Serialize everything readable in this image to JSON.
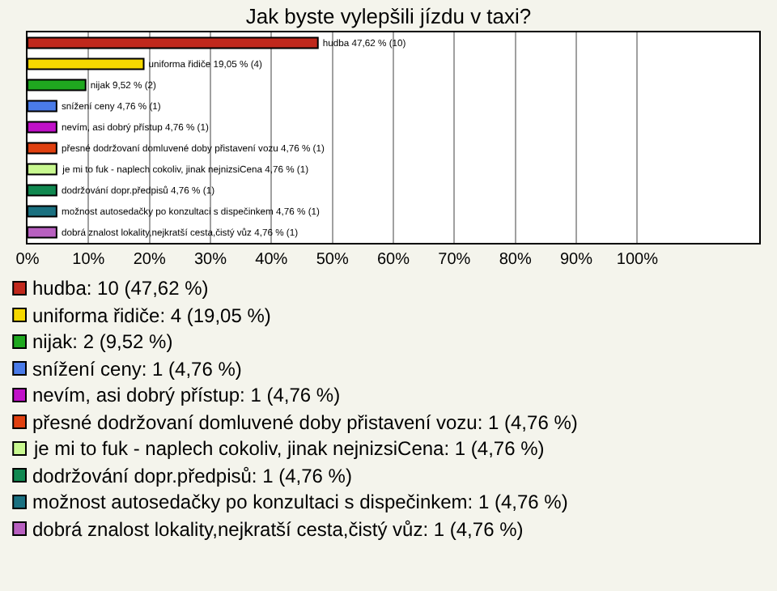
{
  "chart_data": {
    "type": "bar",
    "orientation": "horizontal",
    "title": "Jak byste vylepšili jízdu v taxi?",
    "categories": [
      null,
      null,
      null,
      null,
      null,
      null,
      null,
      null,
      null,
      null
    ],
    "series": [
      {
        "name": "hudba: 10 (47,62 %)",
        "color": "#c0281c",
        "values": [
          47.62,
          null,
          null,
          null,
          null,
          null,
          null,
          null,
          null,
          null
        ],
        "value_labels": [
          "hudba 47,62 % (10)",
          null,
          null,
          null,
          null,
          null,
          null,
          null,
          null,
          null
        ]
      },
      {
        "name": "uniforma řidiče: 4 (19,05 %)",
        "color": "#f5d800",
        "values": [
          null,
          19.05,
          null,
          null,
          null,
          null,
          null,
          null,
          null,
          null
        ],
        "value_labels": [
          null,
          "uniforma řidiče 19,05 % (4)",
          null,
          null,
          null,
          null,
          null,
          null,
          null,
          null
        ]
      },
      {
        "name": "nijak: 2 (9,52 %)",
        "color": "#1fa81f",
        "values": [
          null,
          null,
          9.52,
          null,
          null,
          null,
          null,
          null,
          null,
          null
        ],
        "value_labels": [
          null,
          null,
          "nijak 9,52 % (2)",
          null,
          null,
          null,
          null,
          null,
          null,
          null
        ]
      },
      {
        "name": "snížení ceny: 1 (4,76 %)",
        "color": "#4a7be8",
        "values": [
          null,
          null,
          null,
          4.76,
          null,
          null,
          null,
          null,
          null,
          null
        ],
        "value_labels": [
          null,
          null,
          null,
          "snížení ceny 4,76 % (1)",
          null,
          null,
          null,
          null,
          null,
          null
        ]
      },
      {
        "name": "nevím, asi dobrý přístup: 1 (4,76 %)",
        "color": "#c010c8",
        "values": [
          null,
          null,
          null,
          null,
          4.76,
          null,
          null,
          null,
          null,
          null
        ],
        "value_labels": [
          null,
          null,
          null,
          null,
          "nevím, asi dobrý přístup 4,76 % (1)",
          null,
          null,
          null,
          null,
          null
        ]
      },
      {
        "name": "přesné dodržovaní domluvené doby přistavení vozu: 1 (4,76 %)",
        "color": "#e04010",
        "values": [
          null,
          null,
          null,
          null,
          null,
          4.76,
          null,
          null,
          null,
          null
        ],
        "value_labels": [
          null,
          null,
          null,
          null,
          null,
          "přesné dodržovaní domluvené doby přistavení vozu 4,76 % (1)",
          null,
          null,
          null,
          null
        ]
      },
      {
        "name": "je mi to fuk - naplech cokoliv, jinak nejnizsiCena: 1 (4,76 %)",
        "color": "#c8f890",
        "values": [
          null,
          null,
          null,
          null,
          null,
          null,
          4.76,
          null,
          null,
          null
        ],
        "value_labels": [
          null,
          null,
          null,
          null,
          null,
          null,
          "je mi to fuk - naplech cokoliv, jinak nejnizsiCena 4,76 % (1)",
          null,
          null,
          null
        ]
      },
      {
        "name": "dodržování dopr.předpisů: 1 (4,76 %)",
        "color": "#108850",
        "values": [
          null,
          null,
          null,
          null,
          null,
          null,
          null,
          4.76,
          null,
          null
        ],
        "value_labels": [
          null,
          null,
          null,
          null,
          null,
          null,
          null,
          "dodržování dopr.předpisů 4,76 % (1)",
          null,
          null
        ]
      },
      {
        "name": "možnost autosedačky po konzultaci s dispečinkem: 1 (4,76 %)",
        "color": "#1a7080",
        "values": [
          null,
          null,
          null,
          null,
          null,
          null,
          null,
          null,
          4.76,
          null
        ],
        "value_labels": [
          null,
          null,
          null,
          null,
          null,
          null,
          null,
          null,
          "možnost autosedačky po konzultaci s dispečinkem 4,76 % (1)",
          null
        ]
      },
      {
        "name": "dobrá znalost lokality,nejkratší cesta,čistý vůz: 1 (4,76 %)",
        "color": "#b860c0",
        "values": [
          null,
          null,
          null,
          null,
          null,
          null,
          null,
          null,
          null,
          4.76
        ],
        "value_labels": [
          null,
          null,
          null,
          null,
          null,
          null,
          null,
          null,
          null,
          "dobrá znalost lokality,nejkratší cesta,čistý vůz 4,76 % (1)"
        ]
      }
    ],
    "xlim": [
      0,
      120
    ],
    "xticks": [
      {
        "value": 0,
        "label": "0%"
      },
      {
        "value": 10,
        "label": "10%"
      },
      {
        "value": 20,
        "label": "20%"
      },
      {
        "value": 30,
        "label": "30%"
      },
      {
        "value": 40,
        "label": "40%"
      },
      {
        "value": 50,
        "label": "50%"
      },
      {
        "value": 60,
        "label": "60%"
      },
      {
        "value": 70,
        "label": "70%"
      },
      {
        "value": 80,
        "label": "80%"
      },
      {
        "value": 90,
        "label": "90%"
      },
      {
        "value": 100,
        "label": "100%"
      }
    ],
    "grid": "x",
    "legend": "bottom",
    "tick_labels": "x"
  }
}
